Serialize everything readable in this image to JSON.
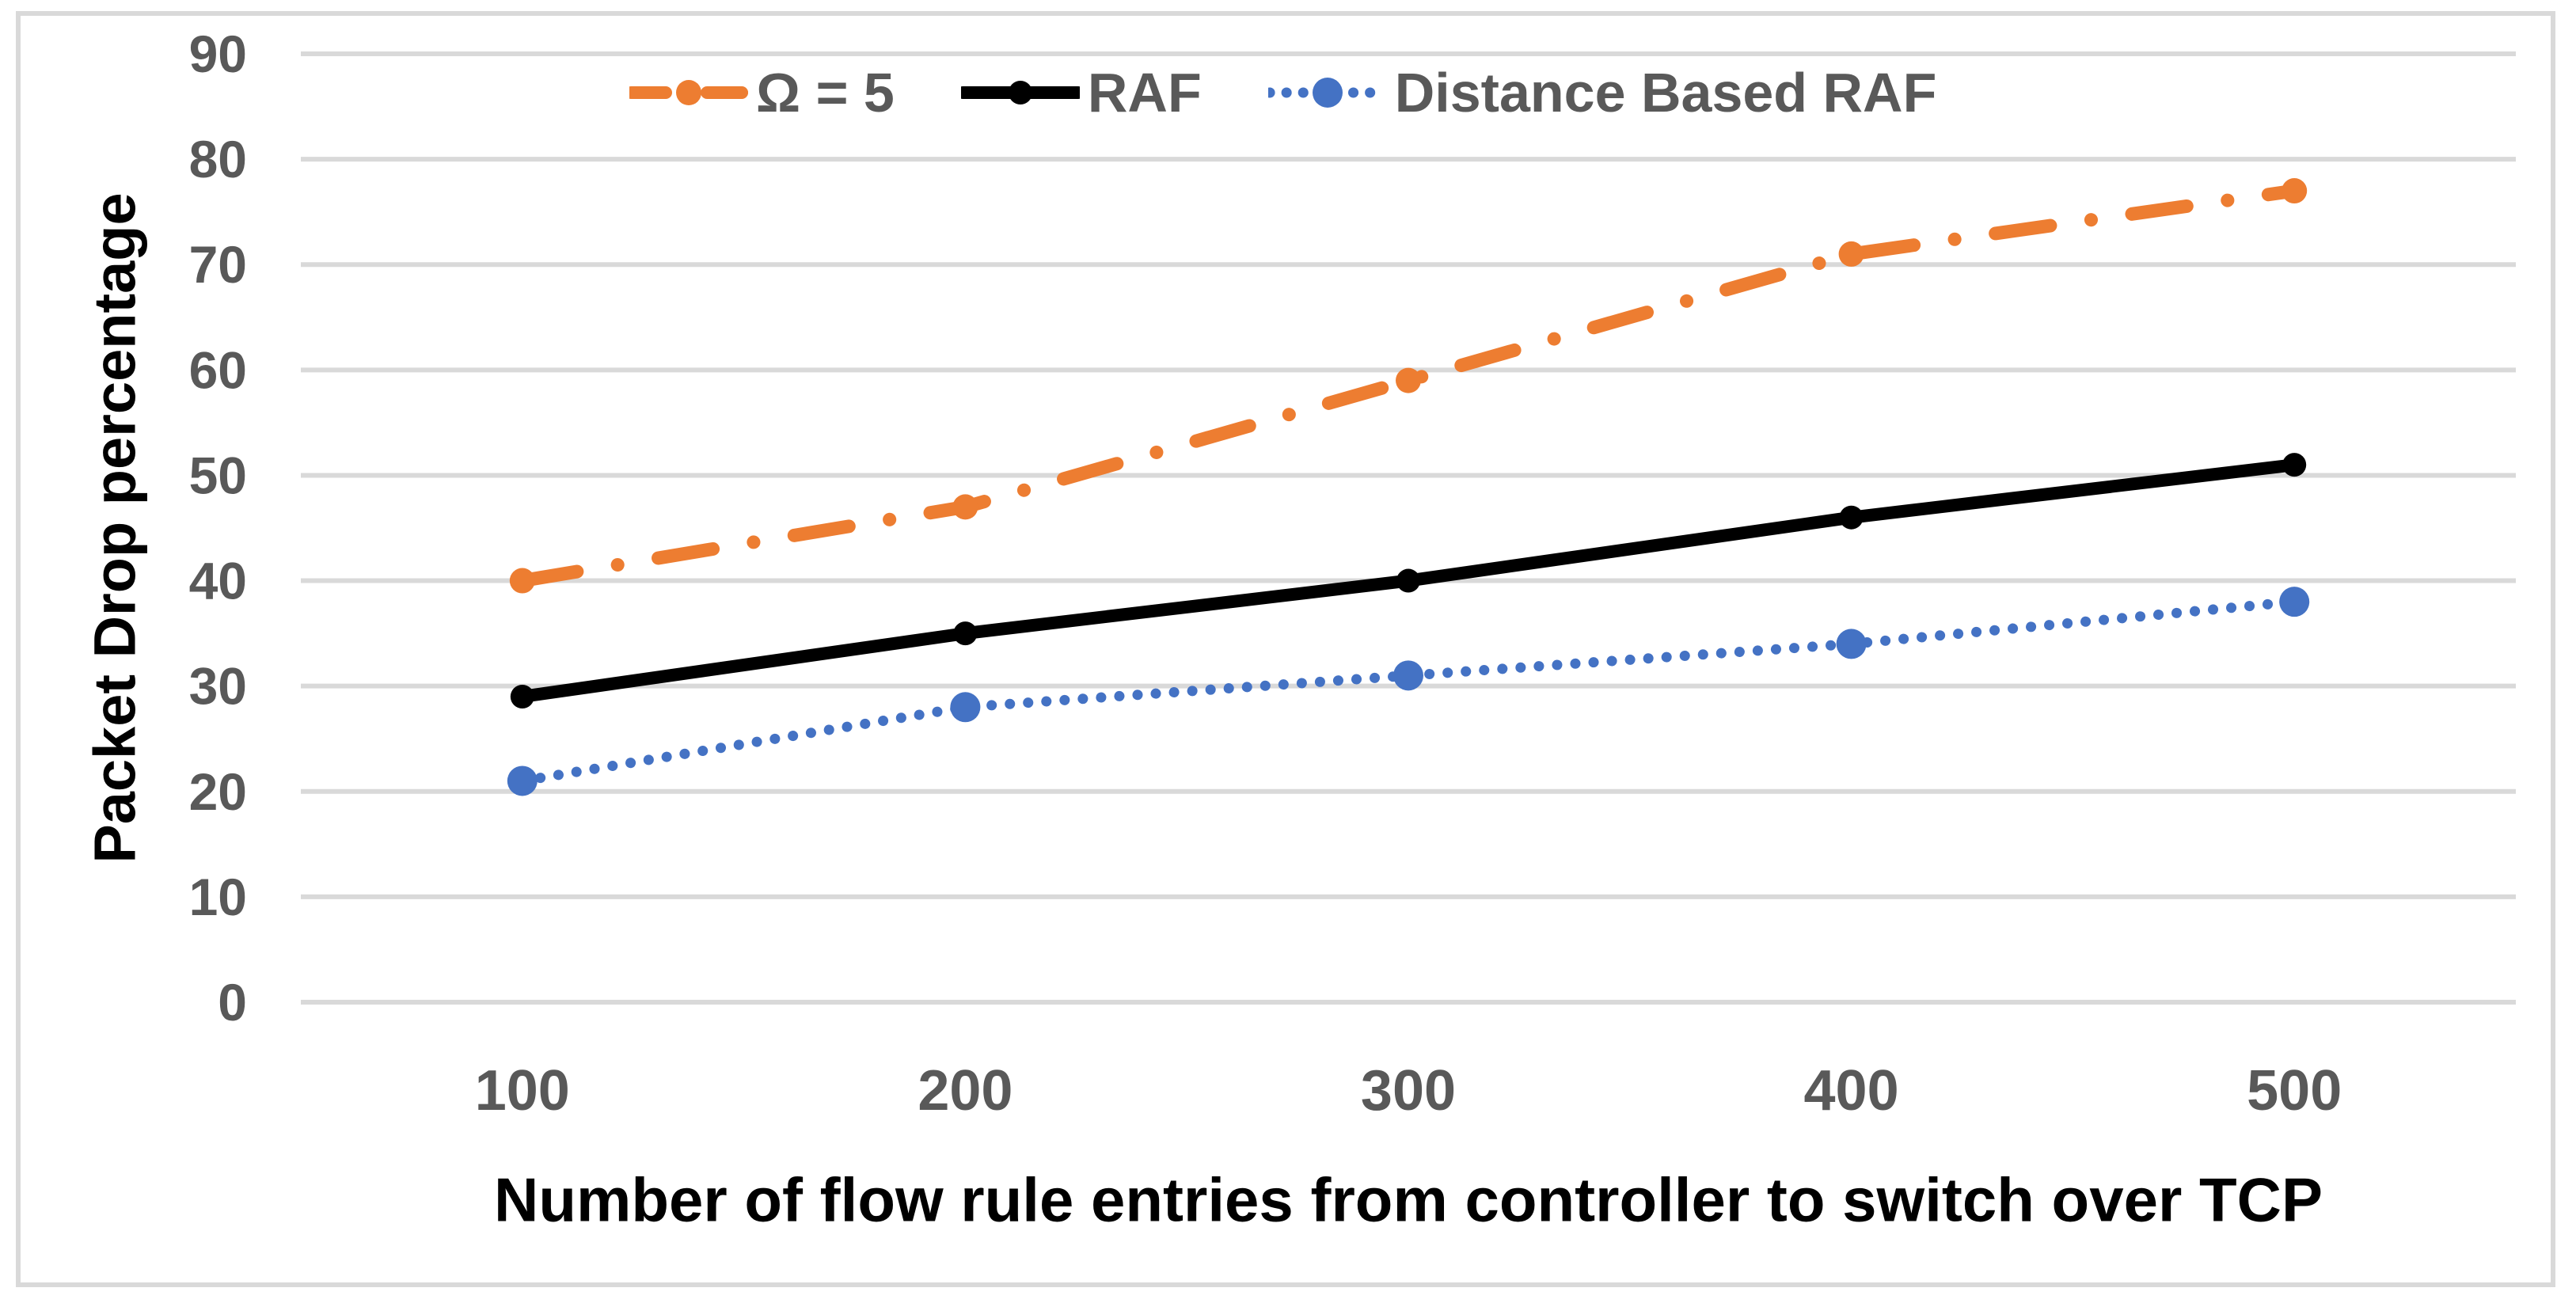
{
  "chart_data": {
    "type": "line",
    "xlabel": "Number of flow rule entries from controller to switch over TCP",
    "ylabel": "Packet Drop percentage",
    "categories": [
      100,
      200,
      300,
      400,
      500
    ],
    "series": [
      {
        "name": "Ω = 5",
        "color": "#ED7D31",
        "line_style": "dash-dot",
        "marker": "circle",
        "values": [
          40,
          47,
          59,
          71,
          77
        ]
      },
      {
        "name": "RAF",
        "color": "#000000",
        "line_style": "solid",
        "marker": "circle",
        "values": [
          29,
          35,
          40,
          46,
          51
        ]
      },
      {
        "name": "Distance Based RAF",
        "color": "#4472C4",
        "line_style": "dotted",
        "marker": "circle",
        "values": [
          21,
          28,
          31,
          34,
          38
        ]
      }
    ],
    "ylim": [
      0,
      90
    ],
    "yticks": [
      0,
      10,
      20,
      30,
      40,
      50,
      60,
      70,
      80,
      90
    ],
    "grid": "horizontal",
    "legend_position": "top-center",
    "colors": {
      "gridline": "#D9D9D9",
      "tick_text": "#595959",
      "axis_title_text": "#000000",
      "frame_border": "#D9D9D9",
      "background": "#FFFFFF"
    }
  }
}
